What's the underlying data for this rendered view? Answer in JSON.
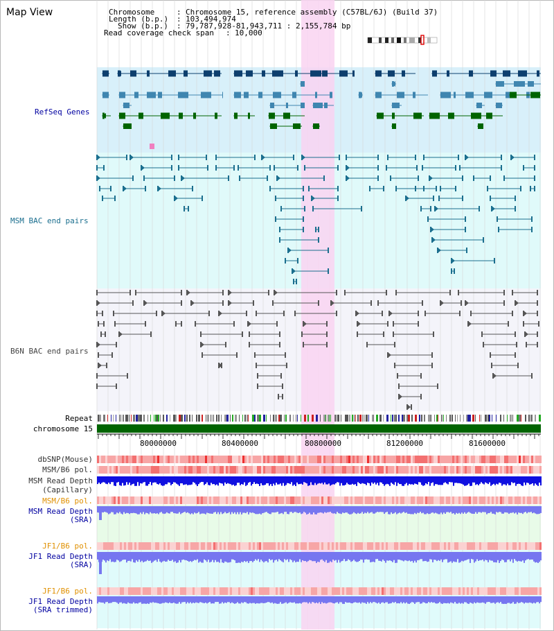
{
  "page": {
    "title": "Map View"
  },
  "info": {
    "chromosome_key": "Chromosome",
    "chromosome_val": "Chromosome 15, reference assembly (C57BL/6J) (Build 37)",
    "length_key": "Length (b.p.)",
    "length_val": "103,494,974",
    "show_key": "Show (b.p.)",
    "show_val": "79,787,928-81,943,711 : 2,155,784 bp",
    "span_key": "Read coverage check span",
    "span_val": "10,000"
  },
  "tracks": {
    "refseq": "RefSeq Genes",
    "msm_bac": "MSM BAC end pairs",
    "b6n_bac": "B6N BAC end pairs",
    "repeat": "Repeat",
    "chrom": "chromosome 15",
    "dbsnp": "dbSNP(Mouse)",
    "msm_pol1": "MSM/B6 pol.",
    "msm_depth_cap_1": "MSM Read Depth",
    "msm_depth_cap_2": "(Capillary)",
    "msm_pol2": "MSM/B6 pol.",
    "msm_depth_sra_1": "MSM Read Depth",
    "msm_depth_sra_2": "(SRA)",
    "jf1_pol1": "JF1/B6 pol.",
    "jf1_depth_1": "JF1 Read Depth",
    "jf1_depth_2": "(SRA)",
    "jf1_pol2": "JF1/B6 pol.",
    "jf1_depth_trim_1": "JF1 Read Depth",
    "jf1_depth_trim_2": "(SRA trimmed)"
  },
  "axis": {
    "ticks": [
      "80000000",
      "80400000",
      "80800000",
      "81200000",
      "81600000"
    ]
  },
  "colors": {
    "gene_dark": "#0d3f6e",
    "gene_mid": "#3f86b0",
    "gene_green": "#006400",
    "msm_bac": "#1a6e8e",
    "b6n_bac": "#555555",
    "highlight": "#f9d3f1",
    "depth_blue": "#1010e0",
    "depth_light": "#7676f0",
    "label_blue": "#0000a0",
    "label_orange": "#e09000"
  }
}
